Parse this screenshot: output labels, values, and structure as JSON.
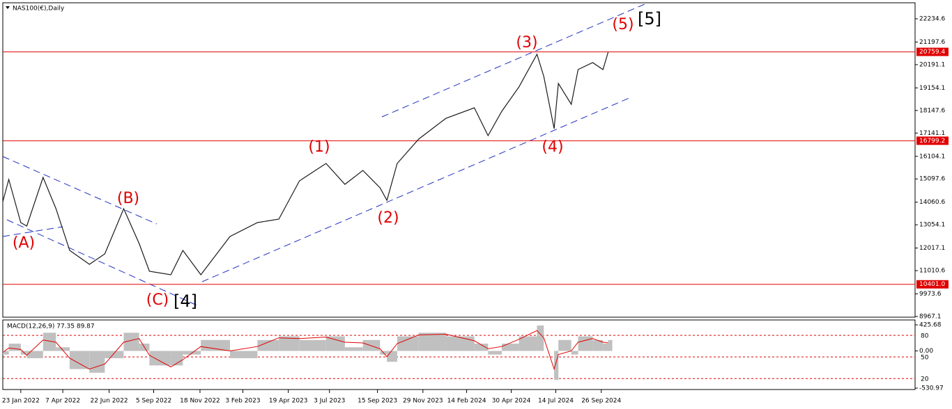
{
  "chart_data": [
    {
      "type": "line",
      "title": "NAS100(€),Daily",
      "color": "#1a1a1a",
      "x": [
        0,
        7,
        21,
        28,
        47,
        62,
        78,
        101,
        119,
        141,
        159,
        171,
        196,
        210,
        231,
        265,
        297,
        322,
        346,
        377,
        399,
        420,
        440,
        448,
        460,
        485,
        517,
        550,
        566,
        582,
        602,
        623,
        631,
        643,
        648,
        663,
        671,
        688,
        700,
        706
      ],
      "values": [
        14082,
        15074,
        13152,
        12997,
        15166,
        13772,
        11912,
        11292,
        11757,
        13772,
        12222,
        10982,
        10827,
        11912,
        10827,
        12532,
        13152,
        13307,
        15012,
        15787,
        14857,
        15477,
        14702,
        14144,
        15787,
        16872,
        17802,
        18267,
        17027,
        18112,
        19197,
        20654,
        19662,
        17337,
        19352,
        18422,
        19972,
        20282,
        19972,
        20747
      ],
      "xlim": [
        0,
        1064
      ],
      "xticks": [
        {
          "value": 21,
          "label": "23 Jan 2022"
        },
        {
          "value": 70,
          "label": "7 Apr 2022"
        },
        {
          "value": 124,
          "label": "22 Jun 2022"
        },
        {
          "value": 176,
          "label": "5 Sep 2022"
        },
        {
          "value": 230,
          "label": "18 Nov 2022"
        },
        {
          "value": 280,
          "label": "3 Feb 2023"
        },
        {
          "value": 333,
          "label": "19 Apr 2023"
        },
        {
          "value": 381,
          "label": "3 Jul 2023"
        },
        {
          "value": 437,
          "label": "15 Sep 2023"
        },
        {
          "value": 490,
          "label": "29 Nov 2023"
        },
        {
          "value": 541,
          "label": "14 Feb 2024"
        },
        {
          "value": 593,
          "label": "30 Apr 2024"
        },
        {
          "value": 645,
          "label": "14 Jul 2024"
        },
        {
          "value": 698,
          "label": "26 Sep 2024"
        }
      ],
      "ylim": [
        8936,
        22947
      ],
      "yticks": [
        8967.1,
        9973.6,
        11010.6,
        12017.1,
        13054.1,
        14060.6,
        15097.6,
        16104.1,
        17141.1,
        18147.6,
        19154.1,
        20191.1,
        21197.6,
        22234.6
      ],
      "levels": [
        20759.4,
        16799.2,
        {
          "value": 10401,
          "label": "10401.0"
        }
      ],
      "level_color": "#e00000",
      "annotations": [
        "(A)",
        "(B)",
        "(C)",
        "[4]",
        "(1)",
        "(2)",
        "(3)",
        "(4)",
        "(5)",
        "[5]"
      ]
    },
    {
      "type": "macd",
      "title": "MACD(12,26,9) 77.35 89.87",
      "x": [
        0,
        7,
        21,
        28,
        47,
        62,
        78,
        101,
        119,
        141,
        159,
        171,
        196,
        210,
        231,
        265,
        297,
        322,
        346,
        377,
        399,
        420,
        440,
        448,
        460,
        485,
        517,
        550,
        566,
        582,
        602,
        623,
        631,
        643,
        648,
        663,
        671,
        688,
        700,
        706
      ],
      "histogram": [
        -50,
        100,
        -50,
        -100,
        250,
        50,
        -250,
        -300,
        -100,
        250,
        100,
        -200,
        -200,
        -50,
        150,
        -100,
        150,
        200,
        150,
        200,
        50,
        150,
        -50,
        -150,
        200,
        250,
        200,
        100,
        -50,
        100,
        200,
        350,
        0,
        -400,
        150,
        -50,
        200,
        150,
        100,
        150
      ],
      "signal": [
        -20,
        40,
        20,
        -60,
        150,
        120,
        -100,
        -250,
        -180,
        120,
        170,
        -60,
        -220,
        -120,
        60,
        0,
        60,
        180,
        170,
        190,
        120,
        110,
        30,
        -80,
        100,
        220,
        230,
        140,
        30,
        60,
        160,
        280,
        180,
        -250,
        -50,
        0,
        120,
        170,
        120,
        110
      ],
      "histogram_color": "#c0c0c0",
      "signal_color": "#e00000",
      "ylim": [
        -530.97,
        425.68
      ],
      "yticks": [
        -530.97,
        {
          "value": 0,
          "label": "0.00"
        },
        425.68
      ],
      "y2lim": [
        4.8,
        101.3
      ],
      "y2ticks": [
        20,
        50,
        80
      ]
    }
  ]
}
